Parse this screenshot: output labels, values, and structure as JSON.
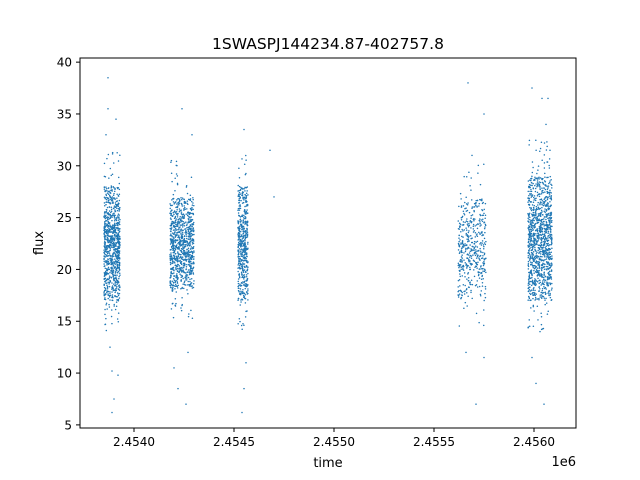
{
  "chart_data": {
    "type": "scatter",
    "title": "1SWASPJ144234.87-402757.8",
    "xlabel": "time",
    "ylabel": "flux",
    "x_offset_label": "1e6",
    "xlim": [
      2.45373,
      2.45621
    ],
    "ylim": [
      4.7,
      40.4
    ],
    "x_ticks": [
      2.454,
      2.4545,
      2.455,
      2.4555,
      2.456
    ],
    "x_tick_labels": [
      "2.4540",
      "2.4545",
      "2.4550",
      "2.4555",
      "2.4560"
    ],
    "y_ticks": [
      5,
      10,
      15,
      20,
      25,
      30,
      35,
      40
    ],
    "y_tick_labels": [
      "5",
      "10",
      "15",
      "20",
      "25",
      "30",
      "35",
      "40"
    ],
    "grid": false,
    "point_color": "#1f77b4",
    "clusters": [
      {
        "x_start": 2.45385,
        "x_end": 2.45393,
        "y_low": 17.0,
        "y_high": 28.0,
        "density": 900
      },
      {
        "x_start": 2.45418,
        "x_end": 2.4543,
        "y_low": 18.0,
        "y_high": 27.0,
        "density": 900
      },
      {
        "x_start": 2.45452,
        "x_end": 2.45457,
        "y_low": 17.0,
        "y_high": 28.0,
        "density": 500
      },
      {
        "x_start": 2.45562,
        "x_end": 2.45576,
        "y_low": 17.0,
        "y_high": 27.0,
        "density": 450
      },
      {
        "x_start": 2.45597,
        "x_end": 2.45609,
        "y_low": 17.0,
        "y_high": 29.0,
        "density": 1100
      }
    ],
    "outliers": [
      {
        "x": 2.45387,
        "y": 38.5
      },
      {
        "x": 2.45387,
        "y": 35.5
      },
      {
        "x": 2.45386,
        "y": 33.0
      },
      {
        "x": 2.45388,
        "y": 12.5
      },
      {
        "x": 2.45389,
        "y": 10.2
      },
      {
        "x": 2.4539,
        "y": 7.5
      },
      {
        "x": 2.45389,
        "y": 6.2
      },
      {
        "x": 2.45392,
        "y": 9.8
      },
      {
        "x": 2.45391,
        "y": 34.5
      },
      {
        "x": 2.45424,
        "y": 35.5
      },
      {
        "x": 2.45426,
        "y": 7.0
      },
      {
        "x": 2.4542,
        "y": 10.5
      },
      {
        "x": 2.45422,
        "y": 8.5
      },
      {
        "x": 2.45427,
        "y": 12.0
      },
      {
        "x": 2.45429,
        "y": 33.0
      },
      {
        "x": 2.45454,
        "y": 6.2
      },
      {
        "x": 2.45455,
        "y": 8.5
      },
      {
        "x": 2.45455,
        "y": 33.5
      },
      {
        "x": 2.45456,
        "y": 11.0
      },
      {
        "x": 2.45468,
        "y": 31.5
      },
      {
        "x": 2.4547,
        "y": 27.0
      },
      {
        "x": 2.45567,
        "y": 38.0
      },
      {
        "x": 2.45566,
        "y": 12.0
      },
      {
        "x": 2.45569,
        "y": 31.0
      },
      {
        "x": 2.45571,
        "y": 7.0
      },
      {
        "x": 2.45575,
        "y": 35.0
      },
      {
        "x": 2.45575,
        "y": 11.5
      },
      {
        "x": 2.45599,
        "y": 37.5
      },
      {
        "x": 2.45599,
        "y": 11.5
      },
      {
        "x": 2.45601,
        "y": 9.0
      },
      {
        "x": 2.45604,
        "y": 36.5
      },
      {
        "x": 2.45605,
        "y": 7.0
      },
      {
        "x": 2.45606,
        "y": 34.0
      },
      {
        "x": 2.45607,
        "y": 36.5
      },
      {
        "x": 2.45608,
        "y": 31.5
      },
      {
        "x": 2.45603,
        "y": 14.0
      }
    ]
  }
}
